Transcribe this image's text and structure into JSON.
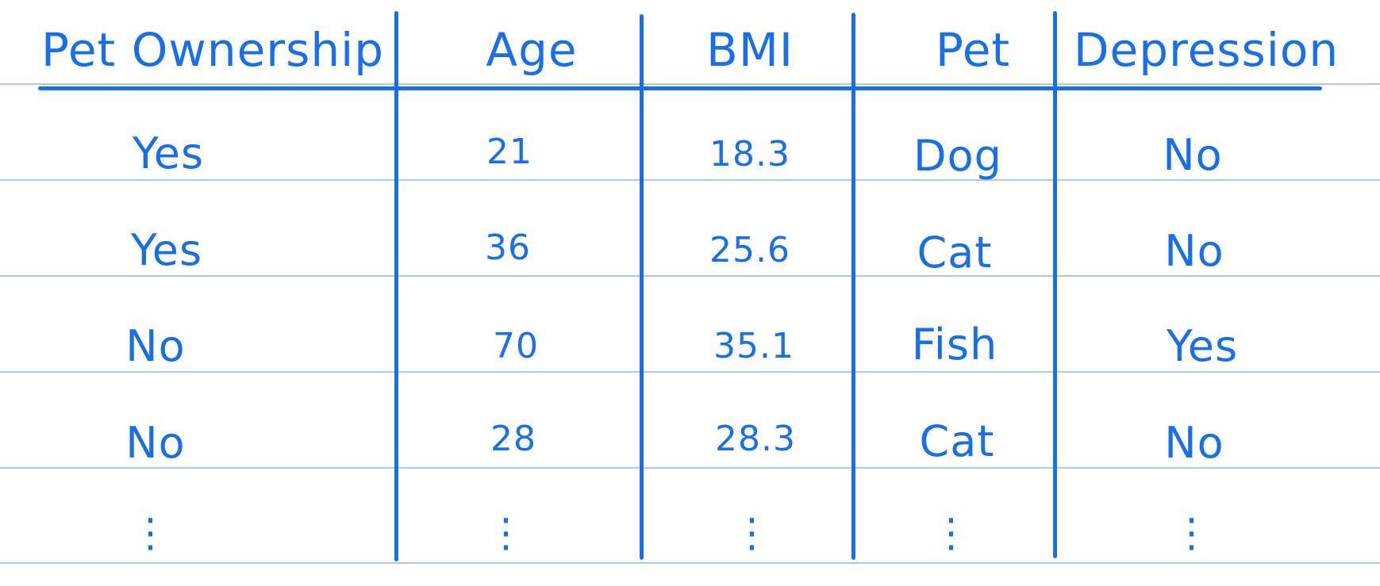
{
  "table": {
    "headers": [
      "Pet  Ownership",
      "Age",
      "BMI",
      "Pet",
      "Depression"
    ],
    "rows": [
      [
        "Yes",
        "21",
        "18.3",
        "Dog",
        "No"
      ],
      [
        "Yes",
        "36",
        "25.6",
        "Cat",
        "No"
      ],
      [
        "No",
        "70",
        "35.1",
        "Fish",
        "Yes"
      ],
      [
        "No",
        "28",
        "28.3",
        "Cat",
        "No"
      ],
      [
        "⋮",
        "⋮",
        "⋮",
        "⋮",
        "⋮"
      ]
    ]
  },
  "colors": {
    "ink": "#1a6fe6",
    "ruled_lines": "#b6c8e0",
    "paper": "#ffffff"
  }
}
